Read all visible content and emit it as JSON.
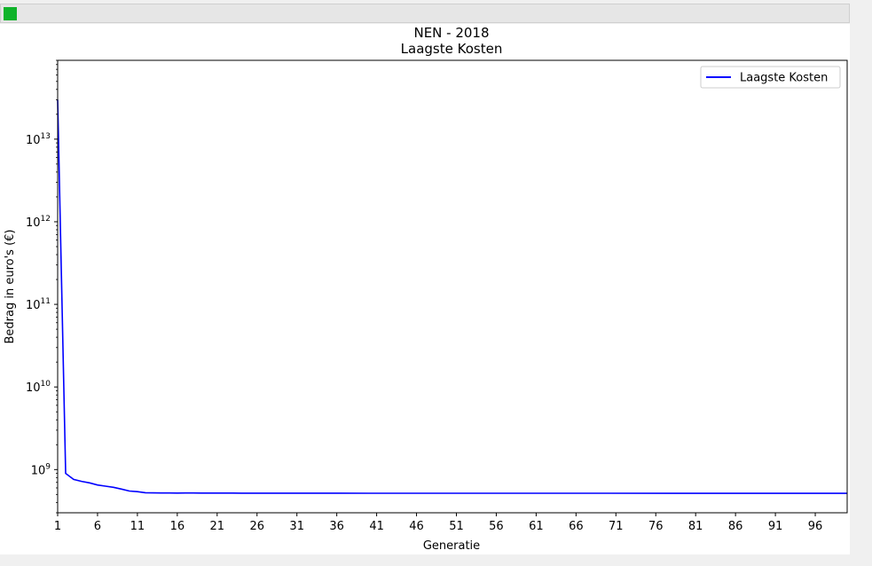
{
  "window": {
    "icon": "app-icon"
  },
  "chart_data": {
    "type": "line",
    "title": "NEN - 2018",
    "subtitle": "Laagste Kosten",
    "xlabel": "Generatie",
    "ylabel": "Bedrag in euro's (€)",
    "yscale": "log",
    "xlim": [
      1,
      100
    ],
    "ylim": [
      300000000,
      90000000000000
    ],
    "xticks": [
      1,
      6,
      11,
      16,
      21,
      26,
      31,
      36,
      41,
      46,
      51,
      56,
      61,
      66,
      71,
      76,
      81,
      86,
      91,
      96
    ],
    "yticks": [
      {
        "base": "10",
        "exp": "9",
        "value": 1000000000
      },
      {
        "base": "10",
        "exp": "10",
        "value": 10000000000
      },
      {
        "base": "10",
        "exp": "11",
        "value": 100000000000
      },
      {
        "base": "10",
        "exp": "12",
        "value": 1000000000000
      },
      {
        "base": "10",
        "exp": "13",
        "value": 10000000000000
      }
    ],
    "grid": false,
    "legend": "top-right",
    "series": [
      {
        "name": "Laagste Kosten",
        "color": "#0000ff",
        "x": [
          1,
          2,
          3,
          4,
          5,
          6,
          7,
          8,
          9,
          10,
          11,
          12,
          13,
          14,
          15,
          16,
          17,
          18,
          19,
          20,
          21,
          22,
          23,
          24,
          25,
          30,
          40,
          50,
          60,
          70,
          80,
          90,
          100
        ],
        "y": [
          30000000000000,
          900000000,
          760000000,
          720000000,
          690000000,
          650000000,
          630000000,
          610000000,
          580000000,
          550000000,
          540000000,
          525000000,
          522000000,
          521000000,
          521000000,
          520000000,
          521000000,
          521000000,
          520000000,
          520000000,
          520000000,
          519000000,
          519000000,
          518000000,
          518000000,
          518000000,
          517000000,
          517000000,
          517000000,
          517000000,
          516000000,
          516000000,
          515000000
        ]
      }
    ]
  }
}
